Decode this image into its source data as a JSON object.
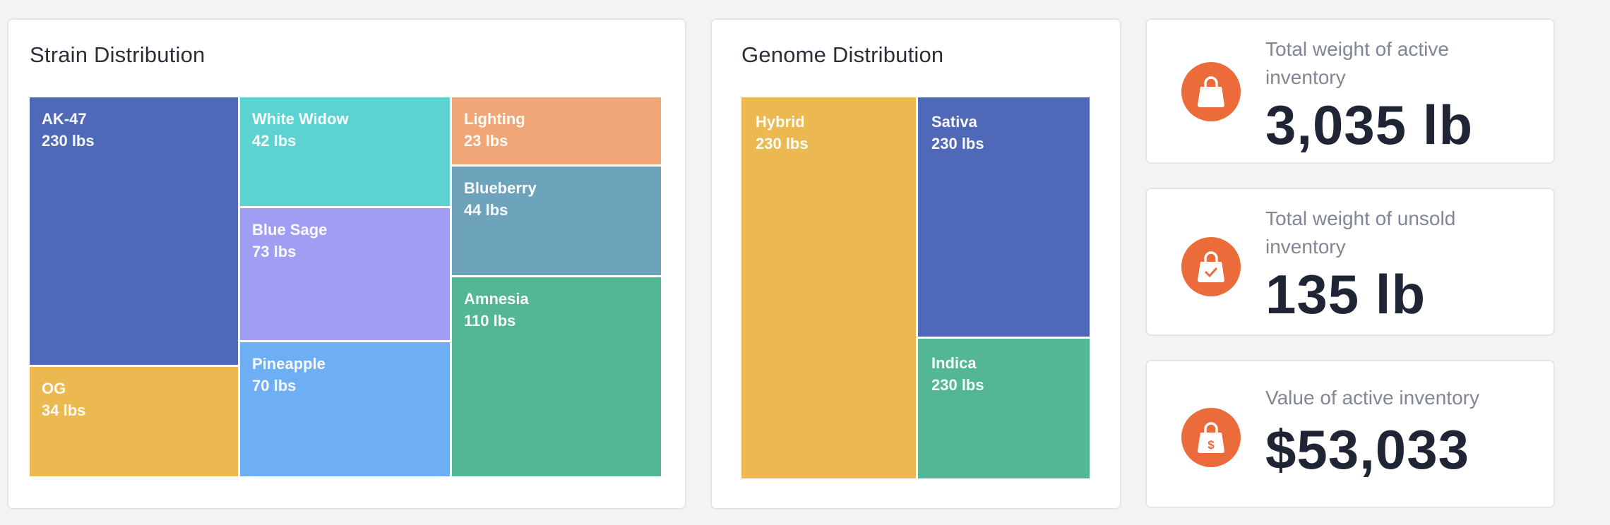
{
  "strain": {
    "title": "Strain Distribution",
    "tiles": [
      {
        "name": "AK-47",
        "value": "230 lbs",
        "color": "#4f69b8"
      },
      {
        "name": "OG",
        "value": "34 lbs",
        "color": "#ebb950"
      },
      {
        "name": "White Widow",
        "value": "42 lbs",
        "color": "#5dd3d1"
      },
      {
        "name": "Blue Sage",
        "value": "73 lbs",
        "color": "#9f9ef3"
      },
      {
        "name": "Pineapple",
        "value": "70 lbs",
        "color": "#6daef5"
      },
      {
        "name": "Lighting",
        "value": "23 lbs",
        "color": "#f0a677"
      },
      {
        "name": "Blueberry",
        "value": "44 lbs",
        "color": "#6ea3bc"
      },
      {
        "name": "Amnesia",
        "value": "110 lbs",
        "color": "#53b695"
      }
    ]
  },
  "genome": {
    "title": "Genome Distribution",
    "tiles": [
      {
        "name": "Hybrid",
        "value": "230 lbs",
        "color": "#ebb950"
      },
      {
        "name": "Sativa",
        "value": "230 lbs",
        "color": "#4f69b8"
      },
      {
        "name": "Indica",
        "value": "230 lbs",
        "color": "#53b695"
      }
    ]
  },
  "stats": [
    {
      "label": "Total weight of active inventory",
      "value": "3,035 lb",
      "icon": "shopping-bag-icon"
    },
    {
      "label": "Total weight of unsold inventory",
      "value": "135 lb",
      "icon": "shopping-bag-check-icon"
    },
    {
      "label": "Value of active inventory",
      "value": "$53,033",
      "icon": "shopping-bag-dollar-icon"
    }
  ],
  "accent_color": "#ec6b3a"
}
